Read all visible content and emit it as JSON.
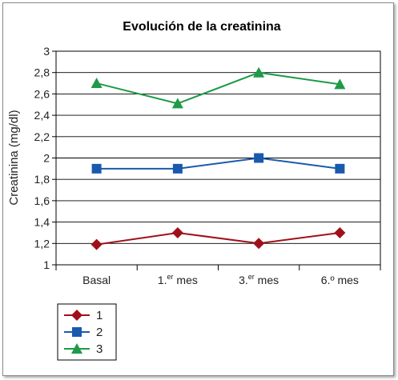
{
  "chart_data": {
    "type": "line",
    "title": "Evolución de la creatinina",
    "xlabel": "",
    "ylabel": "Creatinina (mg/dl)",
    "categories": [
      {
        "base": "Basal",
        "sup": ""
      },
      {
        "base": "1.",
        "sup": "er",
        "rest": " mes"
      },
      {
        "base": "3.",
        "sup": "er",
        "rest": " mes"
      },
      {
        "base": "6.º mes",
        "sup": ""
      }
    ],
    "ylim": [
      1,
      3
    ],
    "yticks": [
      "1",
      "1,2",
      "1,4",
      "1,6",
      "1,8",
      "2",
      "2,2",
      "2,4",
      "2,6",
      "2,8",
      "3"
    ],
    "ytick_values": [
      1,
      1.2,
      1.4,
      1.6,
      1.8,
      2,
      2.2,
      2.4,
      2.6,
      2.8,
      3
    ],
    "grid": true,
    "legend_position": "bottom-left",
    "series": [
      {
        "name": "1",
        "values": [
          1.19,
          1.3,
          1.2,
          1.3
        ],
        "color": "#a0101a",
        "marker": "diamond"
      },
      {
        "name": "2",
        "values": [
          1.9,
          1.9,
          2.0,
          1.9
        ],
        "color": "#1a5aad",
        "marker": "square"
      },
      {
        "name": "3",
        "values": [
          2.7,
          2.51,
          2.8,
          2.69
        ],
        "color": "#1e9a48",
        "marker": "triangle"
      }
    ]
  }
}
